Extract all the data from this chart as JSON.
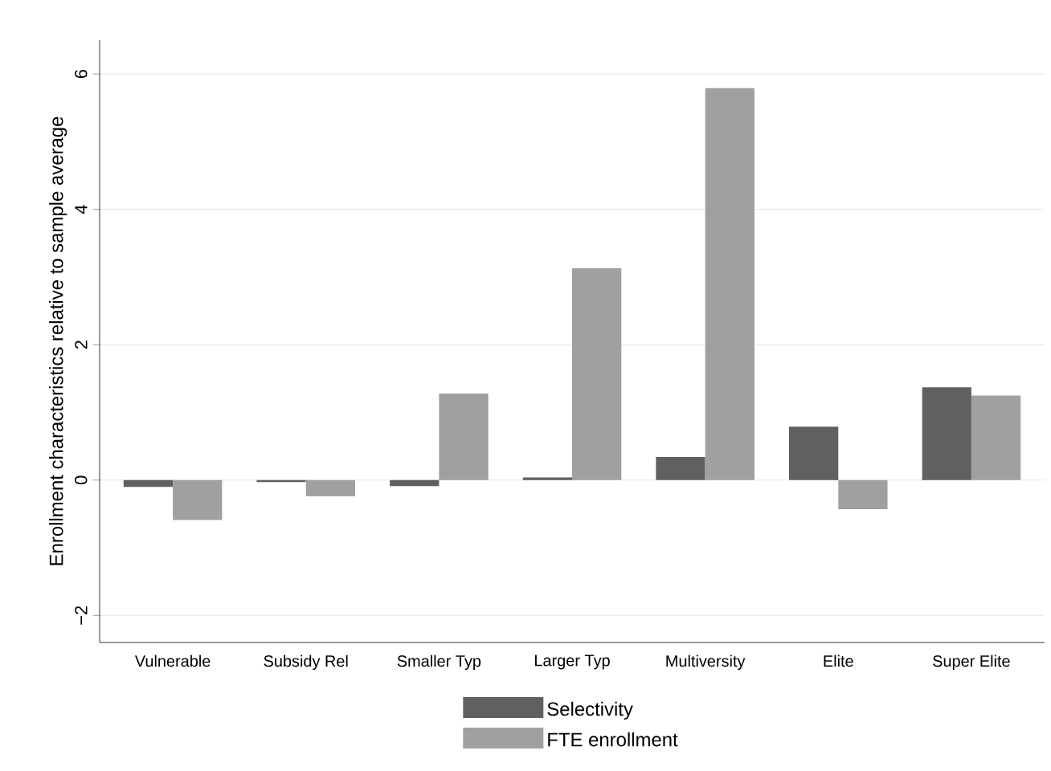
{
  "chart_data": {
    "type": "bar",
    "ylabel": "Enrollment characteristics relative to sample average",
    "categories": [
      "Vulnerable",
      "Subsidy Rel",
      "Smaller Typ",
      "Larger Typ",
      "Multiversity",
      "Elite",
      "Super Elite"
    ],
    "series": [
      {
        "name": "Selectivity",
        "color": "#606060",
        "values": [
          -0.1,
          -0.03,
          -0.09,
          0.04,
          0.34,
          0.79,
          1.37
        ]
      },
      {
        "name": "FTE enrollment",
        "color": "#a0a0a0",
        "values": [
          -0.59,
          -0.24,
          1.28,
          3.13,
          5.79,
          -0.43,
          1.25
        ]
      }
    ],
    "ylim": [
      -2.4,
      6.5
    ],
    "yticks": [
      {
        "value": -2,
        "label": "−2"
      },
      0,
      2,
      4,
      6
    ],
    "grid": "y",
    "legend": "bottom"
  }
}
